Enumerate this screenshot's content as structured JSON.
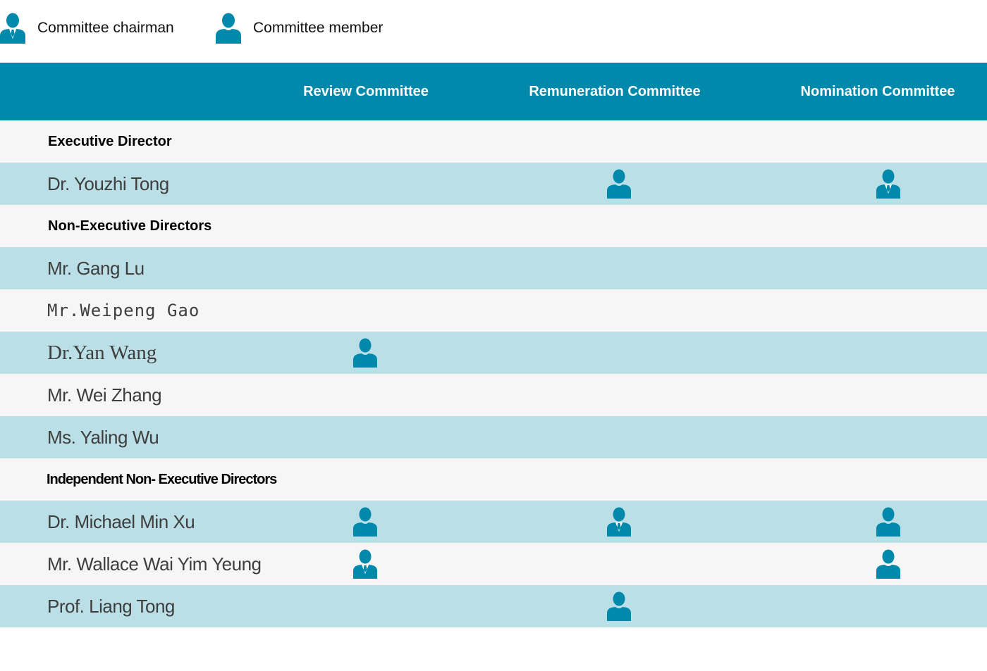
{
  "legend": {
    "chairman_label": "Committee chairman",
    "member_label": "Committee member",
    "icon_color": "#0089ab"
  },
  "header": {
    "columns": [
      "Review Committee",
      "Remuneration Committee",
      "Nomination Committee"
    ],
    "background": "#0089ab"
  },
  "rows": [
    {
      "kind": "section",
      "label": "Executive Director",
      "roles": [
        "",
        "",
        ""
      ]
    },
    {
      "kind": "person",
      "label": "Dr. Youzhi Tong",
      "roles": [
        "",
        "member",
        "chairman"
      ]
    },
    {
      "kind": "section",
      "label": "Non-Executive Directors",
      "roles": [
        "",
        "",
        ""
      ]
    },
    {
      "kind": "person",
      "label": "Mr. Gang Lu",
      "roles": [
        "",
        "",
        ""
      ]
    },
    {
      "kind": "person",
      "label": "Mr.Weipeng Gao",
      "roles": [
        "",
        "",
        ""
      ]
    },
    {
      "kind": "person",
      "label": "Dr.Yan Wang",
      "roles": [
        "member",
        "",
        ""
      ]
    },
    {
      "kind": "person",
      "label": "Mr. Wei Zhang",
      "roles": [
        "",
        "",
        ""
      ]
    },
    {
      "kind": "person",
      "label": "Ms. Yaling Wu",
      "roles": [
        "",
        "",
        ""
      ]
    },
    {
      "kind": "section",
      "label": "Independent Non- Executive Directors",
      "roles": [
        "",
        "",
        ""
      ]
    },
    {
      "kind": "person",
      "label": "Dr. Michael Min Xu",
      "roles": [
        "member",
        "chairman",
        "member"
      ]
    },
    {
      "kind": "person",
      "label": "Mr. Wallace Wai Yim Yeung",
      "roles": [
        "chairman",
        "",
        "member"
      ]
    },
    {
      "kind": "person",
      "label": "Prof. Liang Tong",
      "roles": [
        "",
        "member",
        ""
      ]
    }
  ],
  "colors": {
    "row_light": "#f6f6f7",
    "row_blue": "#badfe6"
  }
}
